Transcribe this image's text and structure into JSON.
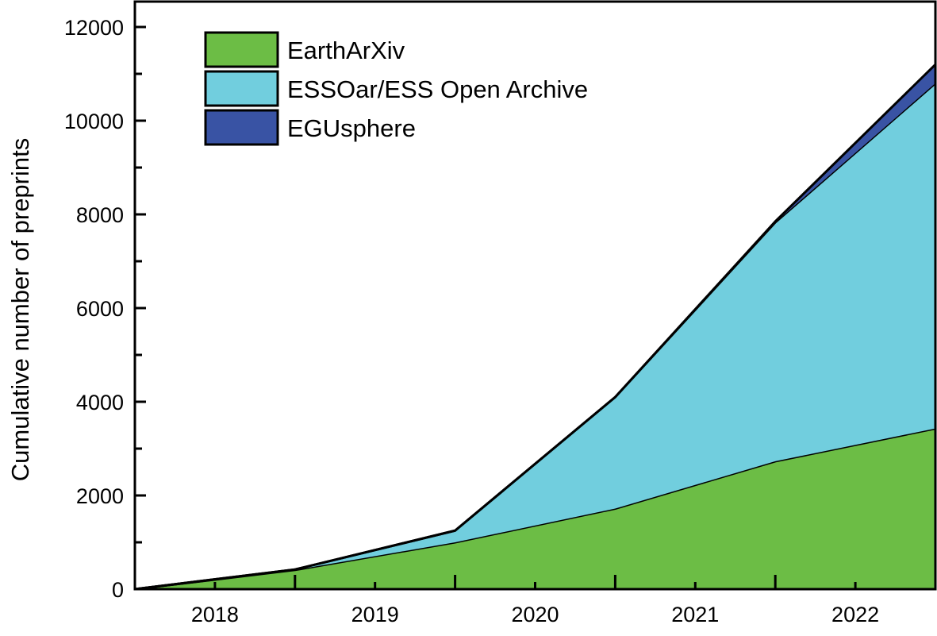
{
  "chart_data": {
    "type": "area",
    "stacked": true,
    "title": "",
    "xlabel": "",
    "ylabel": "Cumulative number of preprints",
    "x": [
      2017.5,
      2018.5,
      2019.5,
      2020.5,
      2021.5,
      2022.5
    ],
    "xlim": [
      2017.5,
      2022.5
    ],
    "ylim": [
      0,
      12000
    ],
    "x_tick_labels": [
      "2018",
      "2019",
      "2020",
      "2021",
      "2022"
    ],
    "x_tick_values": [
      2018,
      2019,
      2020,
      2021,
      2022
    ],
    "y_tick_labels": [
      "0",
      "2000",
      "4000",
      "6000",
      "8000",
      "10000",
      "12000"
    ],
    "y_tick_values": [
      0,
      2000,
      4000,
      6000,
      8000,
      10000,
      12000
    ],
    "legend_position": "top-left",
    "series": [
      {
        "name": "EarthArXiv",
        "color": "#6cbd45",
        "values": [
          0,
          410,
          1000,
          1720,
          2730,
          3430
        ]
      },
      {
        "name": "ESSOar/ESS Open Archive",
        "color": "#71cede",
        "values": [
          0,
          10,
          250,
          2380,
          5100,
          7370
        ]
      },
      {
        "name": "EGUsphere",
        "color": "#3953a4",
        "values": [
          0,
          0,
          0,
          0,
          20,
          400
        ]
      }
    ]
  }
}
